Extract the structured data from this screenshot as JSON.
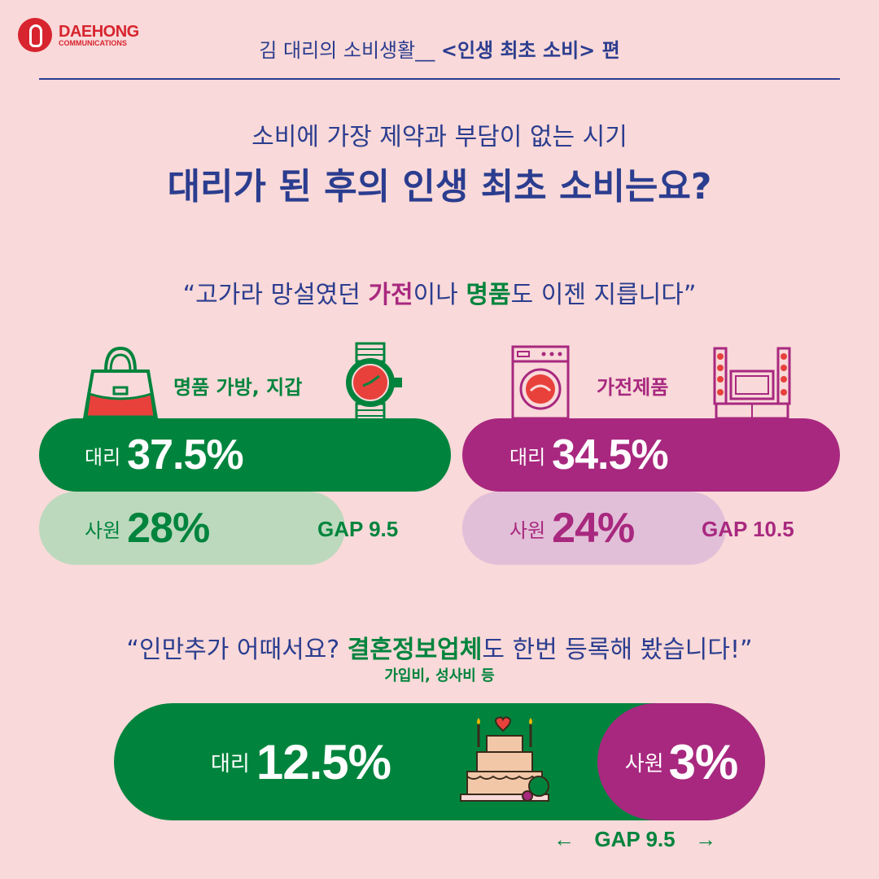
{
  "logo": {
    "name": "DAEHONG",
    "sub": "COMMUNICATIONS"
  },
  "header": {
    "prefix": "김 대리의 소비생활__",
    "emphasis": "<인생 최초 소비> 편"
  },
  "subtitle": "소비에 가장 제약과 부담이 없는 시기",
  "title": "대리가 된 후의 인생 최초 소비는요?",
  "quote1": {
    "open": "“고가라 망설였던 ",
    "hl1": "가전",
    "mid": "이나 ",
    "hl2": "명품",
    "close": "도 이젠 지릅니다”"
  },
  "left": {
    "label": "명품 가방, 지갑",
    "daeri_label": "대리",
    "daeri_value": "37.5%",
    "sawon_label": "사원",
    "sawon_value": "28%",
    "gap": "GAP 9.5",
    "color": "#00843d",
    "light": "#bcd9bd"
  },
  "right": {
    "label": "가전제품",
    "daeri_label": "대리",
    "daeri_value": "34.5%",
    "sawon_label": "사원",
    "sawon_value": "24%",
    "gap": "GAP 10.5",
    "color": "#a8287f",
    "light": "#e2bfd8"
  },
  "quote2": {
    "open": "“인만추가 어때서요? ",
    "hl": "결혼정보업체",
    "close": "도 한번 등록해 봤습니다!”"
  },
  "note": "가입비, 성사비 등",
  "bottom": {
    "daeri_label": "대리",
    "daeri_value": "12.5%",
    "sawon_label": "사원",
    "sawon_value": "3%",
    "gap": "GAP 9.5",
    "left_arrow": "←",
    "right_arrow": "→"
  },
  "icons": [
    "handbag-icon",
    "watch-icon",
    "washing-machine-icon",
    "speaker-system-icon",
    "wedding-cake-icon"
  ]
}
